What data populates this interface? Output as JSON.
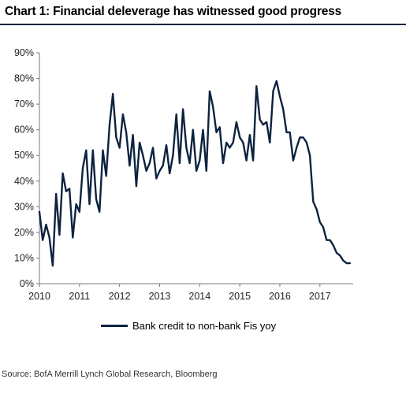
{
  "header": {
    "title": "Chart 1: Financial deleverage has witnessed good progress"
  },
  "footer": {
    "source": "Source: BofA Merrill Lynch Global Research, Bloomberg"
  },
  "colors": {
    "series": "#0c2340",
    "axis": "#7a7a7a",
    "title_rule": "#0c2340"
  },
  "chart_data": {
    "type": "line",
    "title": "Chart 1: Financial deleverage has witnessed good progress",
    "xlabel": "",
    "ylabel": "",
    "ylim": [
      0,
      90
    ],
    "y_tick_labels": [
      "0%",
      "10%",
      "20%",
      "30%",
      "40%",
      "50%",
      "60%",
      "70%",
      "80%",
      "90%"
    ],
    "y_ticks": [
      0,
      10,
      20,
      30,
      40,
      50,
      60,
      70,
      80,
      90
    ],
    "xlim": [
      2010,
      2017.83
    ],
    "x_tick_labels": [
      "2010",
      "2011",
      "2012",
      "2013",
      "2014",
      "2015",
      "2016",
      "2017"
    ],
    "x_ticks": [
      2010,
      2011,
      2012,
      2013,
      2014,
      2015,
      2016,
      2017
    ],
    "grid": false,
    "legend_position": "bottom",
    "series": [
      {
        "name": "Bank credit to non-bank Fis yoy",
        "x": [
          2010.0,
          2010.083,
          2010.167,
          2010.25,
          2010.333,
          2010.417,
          2010.5,
          2010.583,
          2010.667,
          2010.75,
          2010.833,
          2010.917,
          2011.0,
          2011.083,
          2011.167,
          2011.25,
          2011.333,
          2011.417,
          2011.5,
          2011.583,
          2011.667,
          2011.75,
          2011.833,
          2011.917,
          2012.0,
          2012.083,
          2012.167,
          2012.25,
          2012.333,
          2012.417,
          2012.5,
          2012.583,
          2012.667,
          2012.75,
          2012.833,
          2012.917,
          2013.0,
          2013.083,
          2013.167,
          2013.25,
          2013.333,
          2013.417,
          2013.5,
          2013.583,
          2013.667,
          2013.75,
          2013.833,
          2013.917,
          2014.0,
          2014.083,
          2014.167,
          2014.25,
          2014.333,
          2014.417,
          2014.5,
          2014.583,
          2014.667,
          2014.75,
          2014.833,
          2014.917,
          2015.0,
          2015.083,
          2015.167,
          2015.25,
          2015.333,
          2015.417,
          2015.5,
          2015.583,
          2015.667,
          2015.75,
          2015.833,
          2015.917,
          2016.0,
          2016.083,
          2016.167,
          2016.25,
          2016.333,
          2016.417,
          2016.5,
          2016.583,
          2016.667,
          2016.75,
          2016.833,
          2016.917,
          2017.0,
          2017.083,
          2017.167,
          2017.25,
          2017.333,
          2017.417,
          2017.5,
          2017.583,
          2017.667,
          2017.75
        ],
        "values": [
          28,
          17,
          23,
          18,
          7,
          35,
          19,
          43,
          36,
          37,
          18,
          31,
          28,
          45,
          52,
          31,
          52,
          33,
          28,
          52,
          42,
          62,
          74,
          57,
          53,
          66,
          59,
          46,
          58,
          38,
          55,
          50,
          44,
          47,
          53,
          41,
          44,
          46,
          54,
          43,
          50,
          66,
          47,
          68,
          53,
          47,
          60,
          44,
          48,
          60,
          44,
          75,
          69,
          59,
          61,
          47,
          55,
          53,
          55,
          63,
          57,
          55,
          48,
          58,
          48,
          77,
          64,
          62,
          63,
          55,
          75,
          79,
          73,
          68,
          59,
          59,
          48,
          53,
          57,
          57,
          55,
          50,
          32,
          29,
          24,
          22,
          17,
          17,
          15,
          12,
          11,
          9,
          8,
          8
        ]
      }
    ]
  }
}
